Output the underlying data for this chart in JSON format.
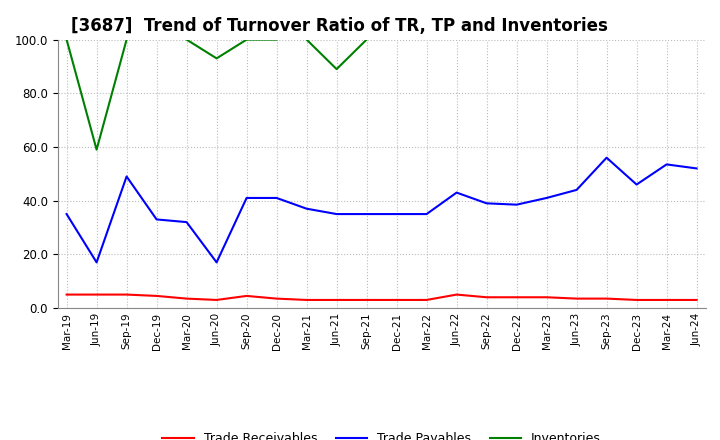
{
  "title": "[3687]  Trend of Turnover Ratio of TR, TP and Inventories",
  "x_labels": [
    "Mar-19",
    "Jun-19",
    "Sep-19",
    "Dec-19",
    "Mar-20",
    "Jun-20",
    "Sep-20",
    "Dec-20",
    "Mar-21",
    "Jun-21",
    "Sep-21",
    "Dec-21",
    "Mar-22",
    "Jun-22",
    "Sep-22",
    "Dec-22",
    "Mar-23",
    "Jun-23",
    "Sep-23",
    "Dec-23",
    "Mar-24",
    "Jun-24"
  ],
  "trade_receivables": [
    5.0,
    5.0,
    5.0,
    4.5,
    3.5,
    3.0,
    4.5,
    3.5,
    3.0,
    3.0,
    3.0,
    3.0,
    3.0,
    5.0,
    4.0,
    4.0,
    4.0,
    3.5,
    3.5,
    3.0,
    3.0,
    3.0
  ],
  "trade_payables": [
    35.0,
    17.0,
    49.0,
    33.0,
    32.0,
    17.0,
    41.0,
    41.0,
    37.0,
    35.0,
    35.0,
    35.0,
    35.0,
    43.0,
    39.0,
    38.5,
    41.0,
    44.0,
    56.0,
    46.0,
    53.5,
    52.0
  ],
  "inventories_x": [
    0,
    1,
    2,
    4,
    5,
    6,
    7,
    8,
    9,
    10
  ],
  "inventories_y": [
    100.0,
    59.0,
    100.0,
    100.0,
    93.0,
    100.0,
    100.0,
    100.0,
    89.0,
    100.0
  ],
  "ylim": [
    0.0,
    100.0
  ],
  "yticks": [
    0.0,
    20.0,
    40.0,
    60.0,
    80.0,
    100.0
  ],
  "tr_color": "#ff0000",
  "tp_color": "#0000ff",
  "inv_color": "#008000",
  "bg_color": "#ffffff",
  "grid_color": "#bbbbbb",
  "title_fontsize": 12,
  "legend_labels": [
    "Trade Receivables",
    "Trade Payables",
    "Inventories"
  ]
}
